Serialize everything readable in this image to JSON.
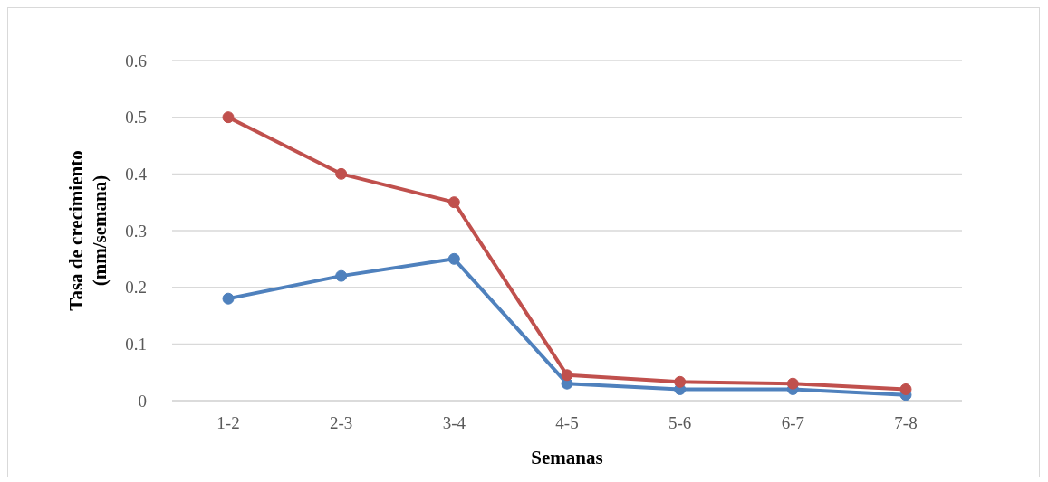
{
  "chart_data": {
    "type": "line",
    "xlabel": "Semanas",
    "ylabel": "Tasa de crecimiento (mm/semana)",
    "categories": [
      "1-2",
      "2-3",
      "3-4",
      "4-5",
      "5-6",
      "6-7",
      "7-8"
    ],
    "series": [
      {
        "color": "#4f81bd",
        "values": [
          0.18,
          0.22,
          0.25,
          0.03,
          0.02,
          0.02,
          0.01
        ]
      },
      {
        "color": "#c0504d",
        "values": [
          0.5,
          0.4,
          0.35,
          0.045,
          0.033,
          0.03,
          0.02
        ]
      }
    ],
    "ylim": [
      0,
      0.6
    ],
    "yticks": [
      0,
      0.1,
      0.2,
      0.3,
      0.4,
      0.5,
      0.6
    ],
    "grid": "y",
    "marker": "circle",
    "line_style": "solid",
    "legend": false
  }
}
